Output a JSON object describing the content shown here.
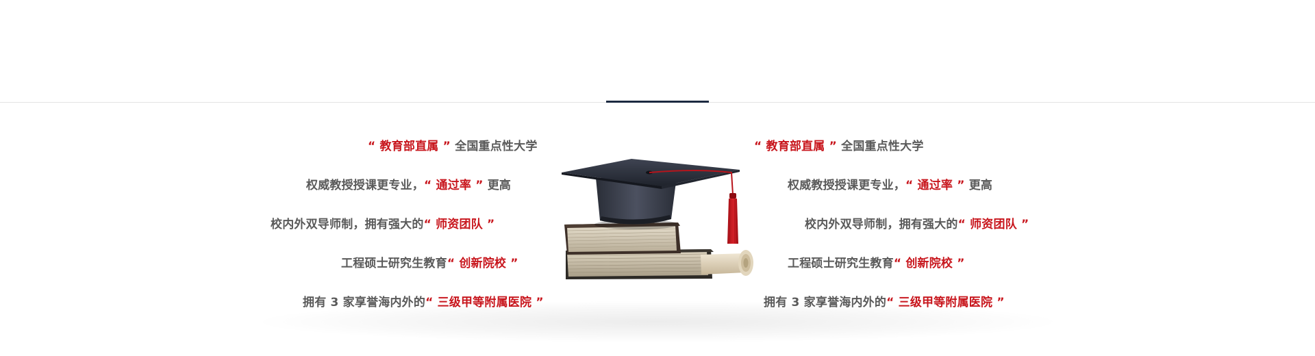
{
  "colors": {
    "text": "#5a5a5a",
    "highlight": "#c8161d",
    "accent": "#1c2a41",
    "divider": "#e3e3e3"
  },
  "graphic": {
    "icon": "graduation-cap-on-books-icon"
  },
  "left_features": [
    {
      "pre": "",
      "open": "“",
      "hl": "教育部直属",
      "close": "”",
      "post": "全国重点性大学"
    },
    {
      "pre": "权威教授授课更专业，",
      "open": "“",
      "hl": "通过率",
      "close": "”",
      "post": "更高"
    },
    {
      "pre": "校内外双导师制，拥有强大的",
      "open": "“",
      "hl": "师资团队",
      "close": "”",
      "post": ""
    },
    {
      "pre": "工程硕士研究生教育",
      "open": "“",
      "hl": "创新院校",
      "close": "”",
      "post": ""
    },
    {
      "pre": "拥有 3 家享誉海内外的",
      "open": "“",
      "hl": "三级甲等附属医院",
      "close": "”",
      "post": ""
    }
  ],
  "right_features": [
    {
      "pre": "",
      "open": "“",
      "hl": "教育部直属",
      "close": "”",
      "post": "全国重点性大学"
    },
    {
      "pre": "权威教授授课更专业，",
      "open": "“",
      "hl": "通过率",
      "close": "”",
      "post": "更高"
    },
    {
      "pre": "校内外双导师制，拥有强大的",
      "open": "“",
      "hl": "师资团队",
      "close": "”",
      "post": ""
    },
    {
      "pre": "工程硕士研究生教育",
      "open": "“",
      "hl": "创新院校",
      "close": "”",
      "post": ""
    },
    {
      "pre": "拥有 3 家享誉海内外的",
      "open": "“",
      "hl": "三级甲等附属医院",
      "close": "”",
      "post": ""
    }
  ]
}
